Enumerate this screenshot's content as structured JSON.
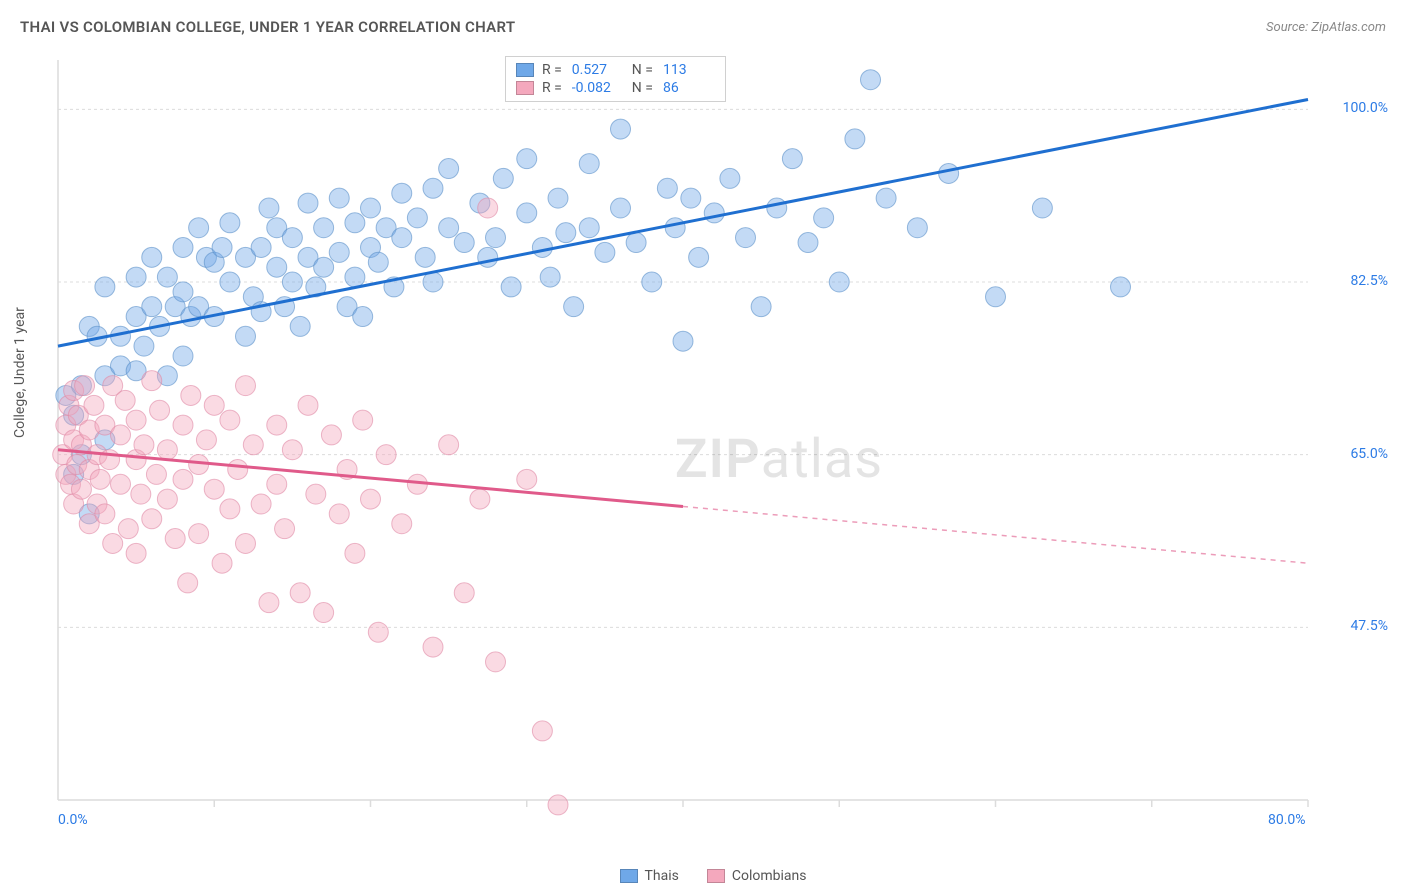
{
  "header": {
    "title": "THAI VS COLOMBIAN COLLEGE, UNDER 1 YEAR CORRELATION CHART",
    "source": "Source: ZipAtlas.com"
  },
  "chart": {
    "type": "scatter",
    "y_label": "College, Under 1 year",
    "xlim": [
      0,
      80
    ],
    "ylim": [
      30,
      105
    ],
    "x_ticks": [
      0,
      80
    ],
    "x_tick_labels": [
      "0.0%",
      "80.0%"
    ],
    "y_ticks": [
      47.5,
      65.0,
      82.5,
      100.0
    ],
    "y_tick_labels": [
      "47.5%",
      "65.0%",
      "82.5%",
      "100.0%"
    ],
    "grid_color": "#dcdcdc",
    "axis_color": "#dcdcdc",
    "background": "#ffffff",
    "point_radius": 10,
    "point_opacity": 0.42,
    "line_width": 3,
    "watermark": "ZIPatlas",
    "series": [
      {
        "name": "Thais",
        "color": "#6fa8e8",
        "stroke": "#5a8fc8",
        "line_color": "#1f6fd0",
        "r": 0.527,
        "n": 113,
        "trend": {
          "x1": 0,
          "y1": 76,
          "x2": 80,
          "y2": 101,
          "solid_until": 80
        },
        "points": [
          [
            0.5,
            71
          ],
          [
            1,
            69
          ],
          [
            1,
            63
          ],
          [
            1.5,
            65
          ],
          [
            1.5,
            72
          ],
          [
            2,
            78
          ],
          [
            2.5,
            77
          ],
          [
            2,
            59
          ],
          [
            3,
            82
          ],
          [
            3,
            66.5
          ],
          [
            3,
            73
          ],
          [
            4,
            77
          ],
          [
            4,
            74
          ],
          [
            5,
            79
          ],
          [
            5,
            83
          ],
          [
            5,
            73.5
          ],
          [
            5.5,
            76
          ],
          [
            6,
            80
          ],
          [
            6,
            85
          ],
          [
            6.5,
            78
          ],
          [
            7,
            83
          ],
          [
            7.5,
            80
          ],
          [
            7,
            73
          ],
          [
            8,
            86
          ],
          [
            8,
            81.5
          ],
          [
            8,
            75
          ],
          [
            8.5,
            79
          ],
          [
            9,
            88
          ],
          [
            9.5,
            85
          ],
          [
            9,
            80
          ],
          [
            10,
            84.5
          ],
          [
            10,
            79
          ],
          [
            10.5,
            86
          ],
          [
            11,
            82.5
          ],
          [
            11,
            88.5
          ],
          [
            12,
            77
          ],
          [
            12,
            85
          ],
          [
            12.5,
            81
          ],
          [
            13,
            86
          ],
          [
            13.5,
            90
          ],
          [
            13,
            79.5
          ],
          [
            14,
            88
          ],
          [
            14,
            84
          ],
          [
            14.5,
            80
          ],
          [
            15,
            82.5
          ],
          [
            15,
            87
          ],
          [
            15.5,
            78
          ],
          [
            16,
            85
          ],
          [
            16,
            90.5
          ],
          [
            16.5,
            82
          ],
          [
            17,
            88
          ],
          [
            17,
            84
          ],
          [
            18,
            91
          ],
          [
            18,
            85.5
          ],
          [
            18.5,
            80
          ],
          [
            19,
            88.5
          ],
          [
            19,
            83
          ],
          [
            19.5,
            79
          ],
          [
            20,
            86
          ],
          [
            20,
            90
          ],
          [
            20.5,
            84.5
          ],
          [
            21,
            88
          ],
          [
            21.5,
            82
          ],
          [
            22,
            91.5
          ],
          [
            22,
            87
          ],
          [
            23,
            89
          ],
          [
            23.5,
            85
          ],
          [
            24,
            82.5
          ],
          [
            24,
            92
          ],
          [
            25,
            88
          ],
          [
            25,
            94
          ],
          [
            26,
            86.5
          ],
          [
            27,
            90.5
          ],
          [
            27.5,
            85
          ],
          [
            28,
            87
          ],
          [
            28.5,
            93
          ],
          [
            29,
            82
          ],
          [
            30,
            89.5
          ],
          [
            30,
            95
          ],
          [
            31,
            86
          ],
          [
            31.5,
            83
          ],
          [
            32,
            91
          ],
          [
            32.5,
            87.5
          ],
          [
            33,
            80
          ],
          [
            34,
            94.5
          ],
          [
            34,
            88
          ],
          [
            35,
            85.5
          ],
          [
            36,
            90
          ],
          [
            36,
            98
          ],
          [
            37,
            86.5
          ],
          [
            38,
            82.5
          ],
          [
            39,
            92
          ],
          [
            39.5,
            88
          ],
          [
            40,
            76.5
          ],
          [
            40.5,
            91
          ],
          [
            41,
            85
          ],
          [
            42,
            89.5
          ],
          [
            43,
            93
          ],
          [
            44,
            87
          ],
          [
            45,
            80
          ],
          [
            46,
            90
          ],
          [
            47,
            95
          ],
          [
            48,
            86.5
          ],
          [
            49,
            89
          ],
          [
            50,
            82.5
          ],
          [
            51,
            97
          ],
          [
            52,
            103
          ],
          [
            53,
            91
          ],
          [
            55,
            88
          ],
          [
            57,
            93.5
          ],
          [
            60,
            81
          ],
          [
            63,
            90
          ],
          [
            68,
            82
          ]
        ]
      },
      {
        "name": "Colombians",
        "color": "#f4a8bd",
        "stroke": "#e088a5",
        "line_color": "#e05a8a",
        "r": -0.082,
        "n": 86,
        "trend": {
          "x1": 0,
          "y1": 65.5,
          "x2": 80,
          "y2": 54,
          "solid_until": 40
        },
        "points": [
          [
            0.3,
            65
          ],
          [
            0.5,
            68
          ],
          [
            0.5,
            63
          ],
          [
            0.7,
            70
          ],
          [
            0.8,
            62
          ],
          [
            1,
            66.5
          ],
          [
            1,
            71.5
          ],
          [
            1,
            60
          ],
          [
            1.2,
            64
          ],
          [
            1.3,
            69
          ],
          [
            1.5,
            66
          ],
          [
            1.5,
            61.5
          ],
          [
            1.7,
            72
          ],
          [
            2,
            63.5
          ],
          [
            2,
            67.5
          ],
          [
            2,
            58
          ],
          [
            2.3,
            70
          ],
          [
            2.5,
            65
          ],
          [
            2.5,
            60
          ],
          [
            2.7,
            62.5
          ],
          [
            3,
            68
          ],
          [
            3,
            59
          ],
          [
            3.3,
            64.5
          ],
          [
            3.5,
            72
          ],
          [
            3.5,
            56
          ],
          [
            4,
            67
          ],
          [
            4,
            62
          ],
          [
            4.3,
            70.5
          ],
          [
            4.5,
            57.5
          ],
          [
            5,
            64.5
          ],
          [
            5,
            68.5
          ],
          [
            5,
            55
          ],
          [
            5.3,
            61
          ],
          [
            5.5,
            66
          ],
          [
            6,
            72.5
          ],
          [
            6,
            58.5
          ],
          [
            6.3,
            63
          ],
          [
            6.5,
            69.5
          ],
          [
            7,
            60.5
          ],
          [
            7,
            65.5
          ],
          [
            7.5,
            56.5
          ],
          [
            8,
            68
          ],
          [
            8,
            62.5
          ],
          [
            8.3,
            52
          ],
          [
            8.5,
            71
          ],
          [
            9,
            64
          ],
          [
            9,
            57
          ],
          [
            9.5,
            66.5
          ],
          [
            10,
            61.5
          ],
          [
            10,
            70
          ],
          [
            10.5,
            54
          ],
          [
            11,
            68.5
          ],
          [
            11,
            59.5
          ],
          [
            11.5,
            63.5
          ],
          [
            12,
            72
          ],
          [
            12,
            56
          ],
          [
            12.5,
            66
          ],
          [
            13,
            60
          ],
          [
            13.5,
            50
          ],
          [
            14,
            68
          ],
          [
            14,
            62
          ],
          [
            14.5,
            57.5
          ],
          [
            15,
            65.5
          ],
          [
            15.5,
            51
          ],
          [
            16,
            70
          ],
          [
            16.5,
            61
          ],
          [
            17,
            49
          ],
          [
            17.5,
            67
          ],
          [
            18,
            59
          ],
          [
            18.5,
            63.5
          ],
          [
            19,
            55
          ],
          [
            19.5,
            68.5
          ],
          [
            20,
            60.5
          ],
          [
            20.5,
            47
          ],
          [
            21,
            65
          ],
          [
            22,
            58
          ],
          [
            23,
            62
          ],
          [
            24,
            45.5
          ],
          [
            25,
            66
          ],
          [
            26,
            51
          ],
          [
            27,
            60.5
          ],
          [
            27.5,
            90
          ],
          [
            28,
            44
          ],
          [
            30,
            62.5
          ],
          [
            31,
            37
          ],
          [
            32,
            29.5
          ]
        ]
      }
    ]
  },
  "legend": {
    "thais": "Thais",
    "colombians": "Colombians"
  }
}
